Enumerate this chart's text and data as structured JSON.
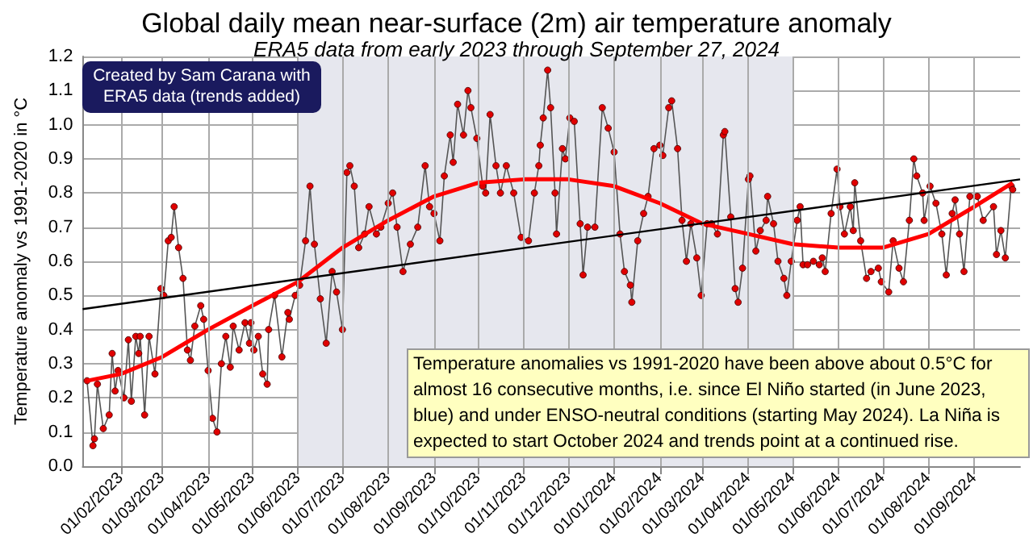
{
  "chart_data": {
    "type": "line",
    "title": "Global daily mean near-surface (2m) air temperature anomaly",
    "subtitle": "ERA5 data from early 2023 through September 27, 2024",
    "ylabel": "Temperature anomaly vs 1991-2020 in °C",
    "annotations": [
      "Created by Sam Carana with ERA5 data (trends added)",
      "Temperature anomalies vs 1991-2020 have been above about 0.5°C for almost 16 consecutive months, i.e. since El Niño started (in June 2023, blue) and under ENSO-neutral conditions (starting May 2024). La Niña is expected to start October 2024 and trends point at a continued rise."
    ],
    "xlim": [
      "2023-01-06",
      "2024-10-02"
    ],
    "xticks": [
      {
        "value": "2023-02-01",
        "label": "01/02/2023"
      },
      {
        "value": "2023-03-01",
        "label": "01/03/2023"
      },
      {
        "value": "2023-04-01",
        "label": "01/04/2023"
      },
      {
        "value": "2023-05-01",
        "label": "01/05/2023"
      },
      {
        "value": "2023-06-01",
        "label": "01/06/2023"
      },
      {
        "value": "2023-07-01",
        "label": "01/07/2023"
      },
      {
        "value": "2023-08-01",
        "label": "01/08/2023"
      },
      {
        "value": "2023-09-01",
        "label": "01/09/2023"
      },
      {
        "value": "2023-10-01",
        "label": "01/10/2023"
      },
      {
        "value": "2023-11-01",
        "label": "01/11/2023"
      },
      {
        "value": "2023-12-01",
        "label": "01/12/2023"
      },
      {
        "value": "2024-01-01",
        "label": "01/01/2024"
      },
      {
        "value": "2024-02-01",
        "label": "01/02/2024"
      },
      {
        "value": "2024-03-01",
        "label": "01/03/2024"
      },
      {
        "value": "2024-04-01",
        "label": "01/04/2024"
      },
      {
        "value": "2024-05-01",
        "label": "01/05/2024"
      },
      {
        "value": "2024-06-01",
        "label": "01/06/2024"
      },
      {
        "value": "2024-07-01",
        "label": "01/07/2024"
      },
      {
        "value": "2024-08-01",
        "label": "01/08/2024"
      },
      {
        "value": "2024-09-01",
        "label": "01/09/2024"
      }
    ],
    "ylim": [
      0,
      1.2
    ],
    "yticks": [
      {
        "value": 0,
        "label": "0.0"
      },
      0.1,
      0.2,
      0.3,
      0.4,
      0.5,
      0.6,
      0.7,
      0.8,
      0.9,
      {
        "value": 1,
        "label": "1.0"
      },
      1.1,
      1.2
    ],
    "grid": true,
    "marker": "circle",
    "bands": [
      {
        "axis": "x",
        "from": "2023-06-01",
        "to": "2024-05-01",
        "color": "#e6e7ee"
      }
    ],
    "series": [
      {
        "color": "#e00000",
        "x": [
          "2023-01-09",
          "2023-01-13",
          "2023-01-14",
          "2023-01-16",
          "2023-01-20",
          "2023-01-24",
          "2023-01-26",
          "2023-01-28",
          "2023-01-30",
          "2023-02-03",
          "2023-02-06",
          "2023-02-08",
          "2023-02-11",
          "2023-02-13",
          "2023-02-14",
          "2023-02-17",
          "2023-02-20",
          "2023-02-24",
          "2023-02-28",
          "2023-03-02",
          "2023-03-05",
          "2023-03-07",
          "2023-03-09",
          "2023-03-12",
          "2023-03-15",
          "2023-03-18",
          "2023-03-20",
          "2023-03-23",
          "2023-03-27",
          "2023-03-29",
          "2023-04-01",
          "2023-04-04",
          "2023-04-07",
          "2023-04-10",
          "2023-04-13",
          "2023-04-16",
          "2023-04-18",
          "2023-04-22",
          "2023-04-26",
          "2023-04-29",
          "2023-04-30",
          "2023-05-02",
          "2023-05-05",
          "2023-05-08",
          "2023-05-11",
          "2023-05-12",
          "2023-05-16",
          "2023-05-21",
          "2023-05-25",
          "2023-05-26",
          "2023-05-30",
          "2023-06-02",
          "2023-06-06",
          "2023-06-09",
          "2023-06-12",
          "2023-06-16",
          "2023-06-20",
          "2023-06-24",
          "2023-06-27",
          "2023-07-01",
          "2023-07-04",
          "2023-07-06",
          "2023-07-09",
          "2023-07-12",
          "2023-07-16",
          "2023-07-19",
          "2023-07-24",
          "2023-07-27",
          "2023-08-01",
          "2023-08-04",
          "2023-08-07",
          "2023-08-11",
          "2023-08-16",
          "2023-08-21",
          "2023-08-26",
          "2023-08-29",
          "2023-09-01",
          "2023-09-05",
          "2023-09-08",
          "2023-09-12",
          "2023-09-14",
          "2023-09-17",
          "2023-09-21",
          "2023-09-24",
          "2023-09-26",
          "2023-09-30",
          "2023-10-04",
          "2023-10-06",
          "2023-10-09",
          "2023-10-13",
          "2023-10-16",
          "2023-10-20",
          "2023-10-25",
          "2023-10-30",
          "2023-11-04",
          "2023-11-08",
          "2023-11-11",
          "2023-11-12",
          "2023-11-14",
          "2023-11-17",
          "2023-11-19",
          "2023-11-22",
          "2023-11-23",
          "2023-11-27",
          "2023-11-29",
          "2023-12-02",
          "2023-12-05",
          "2023-12-09",
          "2023-12-11",
          "2023-12-14",
          "2023-12-19",
          "2023-12-24",
          "2023-12-28",
          "2024-01-01",
          "2024-01-05",
          "2024-01-08",
          "2024-01-12",
          "2024-01-13",
          "2024-01-17",
          "2024-01-21",
          "2024-01-24",
          "2024-01-28",
          "2024-02-01",
          "2024-02-03",
          "2024-02-07",
          "2024-02-09",
          "2024-02-13",
          "2024-02-16",
          "2024-02-19",
          "2024-02-22",
          "2024-02-26",
          "2024-02-29",
          "2024-03-04",
          "2024-03-07",
          "2024-03-11",
          "2024-03-15",
          "2024-03-16",
          "2024-03-20",
          "2024-03-23",
          "2024-03-25",
          "2024-03-28",
          "2024-04-01",
          "2024-04-02",
          "2024-04-06",
          "2024-04-09",
          "2024-04-13",
          "2024-04-14",
          "2024-04-18",
          "2024-04-21",
          "2024-04-25",
          "2024-04-27",
          "2024-04-30",
          "2024-05-04",
          "2024-05-06",
          "2024-05-08",
          "2024-05-11",
          "2024-05-15",
          "2024-05-19",
          "2024-05-21",
          "2024-05-23",
          "2024-05-27",
          "2024-05-31",
          "2024-06-02",
          "2024-06-05",
          "2024-06-09",
          "2024-06-11",
          "2024-06-12",
          "2024-06-16",
          "2024-06-20",
          "2024-06-23",
          "2024-06-28",
          "2024-06-30",
          "2024-07-05",
          "2024-07-08",
          "2024-07-12",
          "2024-07-15",
          "2024-07-19",
          "2024-07-22",
          "2024-07-24",
          "2024-07-28",
          "2024-07-29",
          "2024-08-02",
          "2024-08-06",
          "2024-08-10",
          "2024-08-13",
          "2024-08-17",
          "2024-08-19",
          "2024-08-22",
          "2024-08-25",
          "2024-08-29",
          "2024-09-03",
          "2024-09-07",
          "2024-09-14",
          "2024-09-16",
          "2024-09-19",
          "2024-09-22",
          "2024-09-26",
          "2024-09-27"
        ],
        "values": [
          0.25,
          0.06,
          0.08,
          0.24,
          0.11,
          0.15,
          0.33,
          0.22,
          0.28,
          0.2,
          0.37,
          0.19,
          0.38,
          0.33,
          0.38,
          0.15,
          0.38,
          0.27,
          0.52,
          0.5,
          0.66,
          0.67,
          0.76,
          0.64,
          0.55,
          0.34,
          0.31,
          0.41,
          0.47,
          0.43,
          0.28,
          0.14,
          0.1,
          0.3,
          0.38,
          0.29,
          0.41,
          0.34,
          0.42,
          0.36,
          0.42,
          0.34,
          0.38,
          0.27,
          0.24,
          0.4,
          0.5,
          0.32,
          0.45,
          0.43,
          0.5,
          0.53,
          0.66,
          0.82,
          0.65,
          0.49,
          0.36,
          0.57,
          0.51,
          0.4,
          0.86,
          0.88,
          0.82,
          0.64,
          0.68,
          0.76,
          0.68,
          0.7,
          0.77,
          0.8,
          0.7,
          0.57,
          0.65,
          0.7,
          0.88,
          0.76,
          0.74,
          0.66,
          0.85,
          0.97,
          0.89,
          1.06,
          0.97,
          1.1,
          1.05,
          0.96,
          0.82,
          0.8,
          1.03,
          0.88,
          0.8,
          0.88,
          0.8,
          0.67,
          0.66,
          0.8,
          0.88,
          0.94,
          1.02,
          1.16,
          1.05,
          0.8,
          0.68,
          0.93,
          0.9,
          1.02,
          1.01,
          0.71,
          0.56,
          0.7,
          0.7,
          1.05,
          0.99,
          0.92,
          0.68,
          0.57,
          0.53,
          0.48,
          0.66,
          0.74,
          0.79,
          0.93,
          0.94,
          0.91,
          1.05,
          1.07,
          0.93,
          0.72,
          0.6,
          0.71,
          0.61,
          0.5,
          0.71,
          0.71,
          0.68,
          0.97,
          0.98,
          0.73,
          0.52,
          0.48,
          0.58,
          0.84,
          0.85,
          0.63,
          0.69,
          0.72,
          0.79,
          0.71,
          0.6,
          0.55,
          0.5,
          0.6,
          0.72,
          0.76,
          0.59,
          0.59,
          0.6,
          0.59,
          0.61,
          0.57,
          0.74,
          0.87,
          0.76,
          0.68,
          0.76,
          0.69,
          0.83,
          0.66,
          0.55,
          0.57,
          0.58,
          0.54,
          0.51,
          0.66,
          0.58,
          0.54,
          0.72,
          0.9,
          0.85,
          0.8,
          0.72,
          0.82,
          0.77,
          0.68,
          0.56,
          0.74,
          0.78,
          0.68,
          0.57,
          0.79,
          0.79,
          0.72,
          0.76,
          0.62,
          0.69,
          0.61,
          0.82,
          0.81
        ]
      },
      {
        "type": "line",
        "color": "#ff0000",
        "marker": "none",
        "x": [
          "2023-01-09",
          "2023-02-01",
          "2023-03-01",
          "2023-04-01",
          "2023-05-01",
          "2023-06-01",
          "2023-07-01",
          "2023-08-01",
          "2023-09-01",
          "2023-10-01",
          "2023-11-01",
          "2023-12-01",
          "2024-01-01",
          "2024-02-01",
          "2024-03-01",
          "2024-04-01",
          "2024-05-01",
          "2024-06-01",
          "2024-07-01",
          "2024-08-01",
          "2024-09-01",
          "2024-09-27"
        ],
        "values": [
          0.25,
          0.27,
          0.32,
          0.4,
          0.47,
          0.54,
          0.64,
          0.72,
          0.79,
          0.83,
          0.84,
          0.84,
          0.82,
          0.77,
          0.71,
          0.68,
          0.65,
          0.64,
          0.64,
          0.68,
          0.76,
          0.83
        ]
      },
      {
        "type": "line",
        "color": "#000000",
        "marker": "none",
        "x": [
          "2023-01-06",
          "2024-10-02"
        ],
        "values": [
          0.46,
          0.84
        ]
      }
    ]
  }
}
